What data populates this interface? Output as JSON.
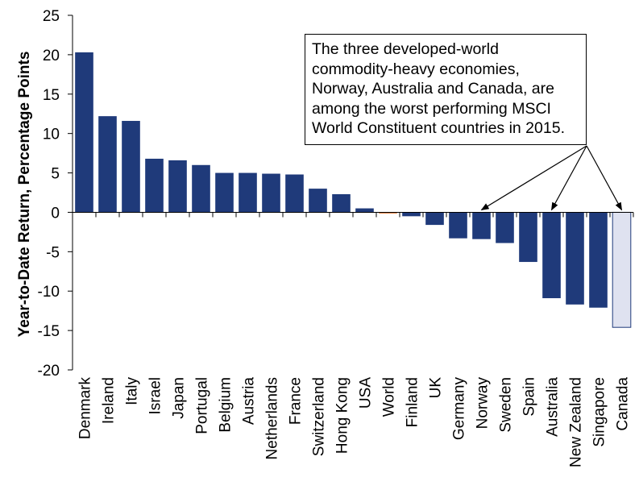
{
  "chart_data": {
    "type": "bar",
    "ylabel": "Year-to-Date Return, Percentage Points",
    "ylim": [
      -20,
      25
    ],
    "yticks": [
      25,
      20,
      15,
      10,
      5,
      0,
      -5,
      -10,
      -15,
      -20
    ],
    "categories": [
      "Denmark",
      "Ireland",
      "Italy",
      "Israel",
      "Japan",
      "Portugal",
      "Belgium",
      "Austria",
      "Netherlands",
      "France",
      "Switzerland",
      "Hong Kong",
      "USA",
      "World",
      "Finland",
      "UK",
      "Germany",
      "Norway",
      "Sweden",
      "Spain",
      "Australia",
      "New Zealand",
      "Singapore",
      "Canada"
    ],
    "values": [
      20.3,
      12.2,
      11.6,
      6.8,
      6.6,
      6.0,
      5.0,
      5.0,
      4.9,
      4.8,
      3.0,
      2.3,
      0.5,
      -0.1,
      -0.5,
      -1.6,
      -3.3,
      -3.4,
      -3.9,
      -6.3,
      -10.9,
      -11.7,
      -12.1,
      -14.6
    ],
    "colors": {
      "default": "#1f3a7a",
      "World": "#e07b39",
      "Canada": "#dfe2f0",
      "canada_border": "#1f3a7a"
    },
    "annotation": {
      "lines": [
        "The three developed-world",
        "commodity-heavy economies,",
        "Norway, Australia and Canada, are",
        "among the worst performing MSCI",
        "World Constituent countries in 2015."
      ],
      "arrow_targets": [
        "Norway",
        "Australia",
        "Canada"
      ]
    }
  }
}
